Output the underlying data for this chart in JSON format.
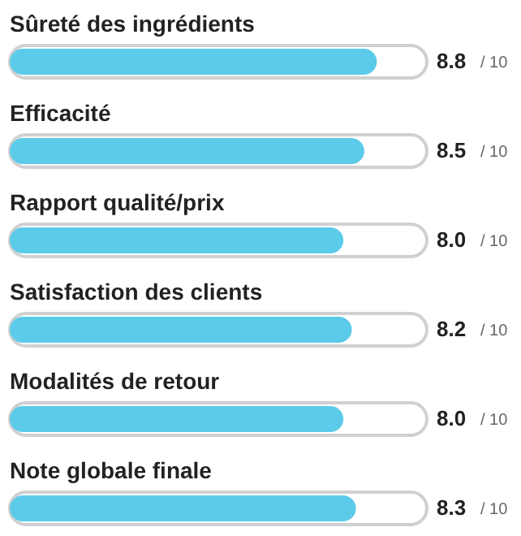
{
  "chart_data": {
    "type": "bar",
    "orientation": "horizontal",
    "categories": [
      "Sûreté des ingrédients",
      "Efficacité",
      "Rapport qualité/prix",
      "Satisfaction des clients",
      "Modalités de retour",
      "Note globale finale"
    ],
    "values": [
      8.8,
      8.5,
      8.0,
      8.2,
      8.0,
      8.3
    ],
    "value_labels": [
      "8.8",
      "8.5",
      "8.0",
      "8.2",
      "8.0",
      "8.3"
    ],
    "annotations": [
      "/ 10",
      "/ 10",
      "/ 10",
      "/ 10",
      "/ 10",
      "/ 10"
    ],
    "color": "#5ccbea",
    "xlim": [
      0,
      10
    ]
  }
}
